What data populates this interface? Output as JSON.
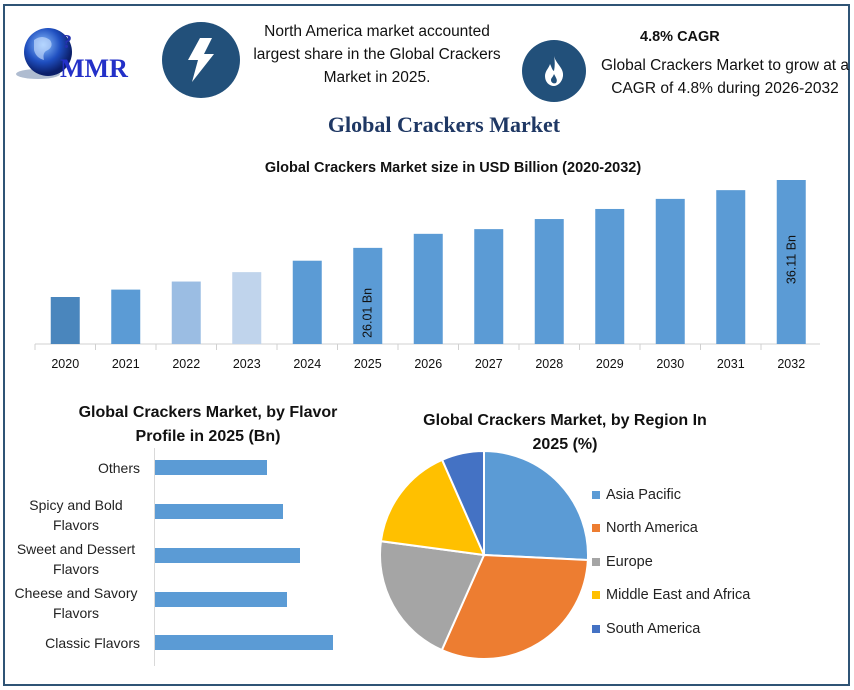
{
  "header": {
    "logo_text": "MMR",
    "info_left": "North America market accounted largest share in the Global Crackers Market in 2025.",
    "cagr_title": "4.8% CAGR",
    "info_right": "Global Crackers Market to grow at a CAGR of 4.8% during 2026-2032",
    "icons": [
      "lightning-bolt-icon",
      "flame-icon"
    ],
    "accent_color": "#22507a"
  },
  "title": "Global Crackers Market",
  "chart_data": [
    {
      "type": "bar",
      "title": "Global Crackers Market size in USD Billion (2020-2032)",
      "categories": [
        "2020",
        "2021",
        "2022",
        "2023",
        "2024",
        "2025",
        "2026",
        "2027",
        "2028",
        "2029",
        "2030",
        "2031",
        "2032"
      ],
      "values": [
        18.7,
        19.8,
        21.0,
        22.4,
        24.1,
        26.01,
        28.1,
        28.8,
        30.3,
        31.8,
        33.3,
        34.6,
        36.11
      ],
      "data_labels": {
        "2025": "26.01 Bn",
        "2032": "36.11 Bn"
      },
      "colors": [
        "#4a86bd",
        "#5b9bd5",
        "#9bbde3",
        "#c0d4ec",
        "#5b9bd5",
        "#5b9bd5",
        "#5b9bd5",
        "#5b9bd5",
        "#5b9bd5",
        "#5b9bd5",
        "#5b9bd5",
        "#5b9bd5",
        "#5b9bd5"
      ],
      "ylim": [
        11.75,
        36.11
      ],
      "grid": false
    },
    {
      "type": "bar",
      "orientation": "horizontal",
      "title": "Global Crackers Market, by Flavor Profile in 2025 (Bn)",
      "categories": [
        "Others",
        "Spicy and Bold Flavors",
        "Sweet and Dessert Flavors",
        "Cheese and Savory Flavors",
        "Classic Flavors"
      ],
      "values": [
        4.19,
        4.79,
        5.43,
        4.94,
        6.66
      ],
      "color": "#5b9bd5",
      "xlim": [
        0,
        6.66
      ]
    },
    {
      "type": "pie",
      "title": "Global Crackers Market, by Region In 2025 (%)",
      "labels": [
        "Asia Pacific",
        "North America",
        "Europe",
        "Middle East and Africa",
        "South America"
      ],
      "values": [
        25.8,
        30.9,
        20.5,
        16.3,
        6.6
      ],
      "colors": [
        "#5b9bd5",
        "#ed7d31",
        "#a5a5a5",
        "#ffc000",
        "#4472c4"
      ],
      "legend_position": "right"
    }
  ]
}
